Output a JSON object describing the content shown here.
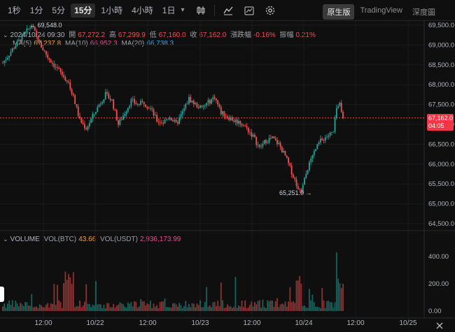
{
  "toolbar": {
    "timeframes": [
      {
        "label": "1秒",
        "name": "tf-1s"
      },
      {
        "label": "1分",
        "name": "tf-1m"
      },
      {
        "label": "5分",
        "name": "tf-5m"
      },
      {
        "label": "15分",
        "name": "tf-15m",
        "active": true
      },
      {
        "label": "1小時",
        "name": "tf-1h"
      },
      {
        "label": "4小時",
        "name": "tf-4h"
      },
      {
        "label": "1日",
        "name": "tf-1d"
      }
    ],
    "more_icon": "chevron-down-icon",
    "icons": [
      "candlestick-type-icon",
      "indicators-icon",
      "drawing-tools-icon",
      "settings-icon"
    ],
    "views": [
      {
        "label": "原生版",
        "active": true
      },
      {
        "label": "TradingView",
        "active": false
      },
      {
        "label": "深度圖",
        "active": false
      }
    ]
  },
  "legend": {
    "datetime": "2024/10/24 09:30",
    "open_label": "開",
    "open": "67,272.2",
    "high_label": "高",
    "high": "67,299.9",
    "low_label": "低",
    "low": "67,160.0",
    "close_label": "收",
    "close": "67,162.0",
    "change_label": "漲跌幅",
    "change": "-0.16%",
    "amp_label": "振幅",
    "amp": "0.21%"
  },
  "ma": {
    "ma5_label": "MA(5)",
    "ma5": "67,237.8",
    "ma10_label": "MA(10)",
    "ma10": "66,952.3",
    "ma20_label": "MA(20)",
    "ma20": "66,738.3"
  },
  "volume": {
    "label": "VOLUME",
    "btc_label": "VOL(BTC)",
    "btc": "43.66",
    "usdt_label": "VOL(USDT)",
    "usdt": "2,936,173.99"
  },
  "annotations": {
    "high_marker": "69,548.0",
    "low_marker": "65,251.0"
  },
  "current_price": {
    "price": "67,162.0",
    "countdown": "04:05"
  },
  "colors": {
    "up": "#26a69a",
    "down": "#ef5350",
    "background": "#0f0f0f"
  },
  "chart_data": {
    "type": "candlestick",
    "price_axis": [
      "69,500.0",
      "69,000.0",
      "68,500.0",
      "68,000.0",
      "67,500.0",
      "67,000.0",
      "66,500.0",
      "66,000.0",
      "65,500.0",
      "65,000.0",
      "64,500.0"
    ],
    "ylim": [
      64400,
      69600
    ],
    "volume_axis": [
      "400.00",
      "200.00",
      "0.00"
    ],
    "volume_ylim": [
      0,
      500
    ],
    "time_axis": [
      "12:00",
      "10/22",
      "12:00",
      "10/23",
      "12:00",
      "10/24",
      "12:00",
      "10/25"
    ],
    "close_path": [
      {
        "x": 0,
        "y": 68550
      },
      {
        "x": 8,
        "y": 69000
      },
      {
        "x": 14,
        "y": 69300
      },
      {
        "x": 18,
        "y": 69500
      },
      {
        "x": 22,
        "y": 69100
      },
      {
        "x": 28,
        "y": 68700
      },
      {
        "x": 34,
        "y": 68400
      },
      {
        "x": 40,
        "y": 68100
      },
      {
        "x": 44,
        "y": 67700
      },
      {
        "x": 48,
        "y": 67100
      },
      {
        "x": 52,
        "y": 66900
      },
      {
        "x": 56,
        "y": 67200
      },
      {
        "x": 60,
        "y": 67500
      },
      {
        "x": 64,
        "y": 67750
      },
      {
        "x": 68,
        "y": 67600
      },
      {
        "x": 72,
        "y": 67000
      },
      {
        "x": 76,
        "y": 67300
      },
      {
        "x": 80,
        "y": 67600
      },
      {
        "x": 84,
        "y": 67500
      },
      {
        "x": 88,
        "y": 67550
      },
      {
        "x": 92,
        "y": 67400
      },
      {
        "x": 96,
        "y": 67100
      },
      {
        "x": 100,
        "y": 67050
      },
      {
        "x": 104,
        "y": 67200
      },
      {
        "x": 108,
        "y": 67000
      },
      {
        "x": 112,
        "y": 67300
      },
      {
        "x": 116,
        "y": 67650
      },
      {
        "x": 120,
        "y": 67500
      },
      {
        "x": 124,
        "y": 67400
      },
      {
        "x": 128,
        "y": 67550
      },
      {
        "x": 132,
        "y": 67700
      },
      {
        "x": 136,
        "y": 67300
      },
      {
        "x": 140,
        "y": 67200
      },
      {
        "x": 144,
        "y": 67100
      },
      {
        "x": 148,
        "y": 67050
      },
      {
        "x": 152,
        "y": 66900
      },
      {
        "x": 156,
        "y": 66700
      },
      {
        "x": 160,
        "y": 66400
      },
      {
        "x": 164,
        "y": 66600
      },
      {
        "x": 168,
        "y": 66650
      },
      {
        "x": 172,
        "y": 66500
      },
      {
        "x": 176,
        "y": 66200
      },
      {
        "x": 180,
        "y": 65800
      },
      {
        "x": 184,
        "y": 65400
      },
      {
        "x": 186,
        "y": 65300
      },
      {
        "x": 190,
        "y": 65900
      },
      {
        "x": 194,
        "y": 66300
      },
      {
        "x": 198,
        "y": 66600
      },
      {
        "x": 202,
        "y": 66700
      },
      {
        "x": 206,
        "y": 66800
      },
      {
        "x": 208,
        "y": 67400
      },
      {
        "x": 210,
        "y": 67600
      },
      {
        "x": 212,
        "y": 67162
      }
    ]
  }
}
